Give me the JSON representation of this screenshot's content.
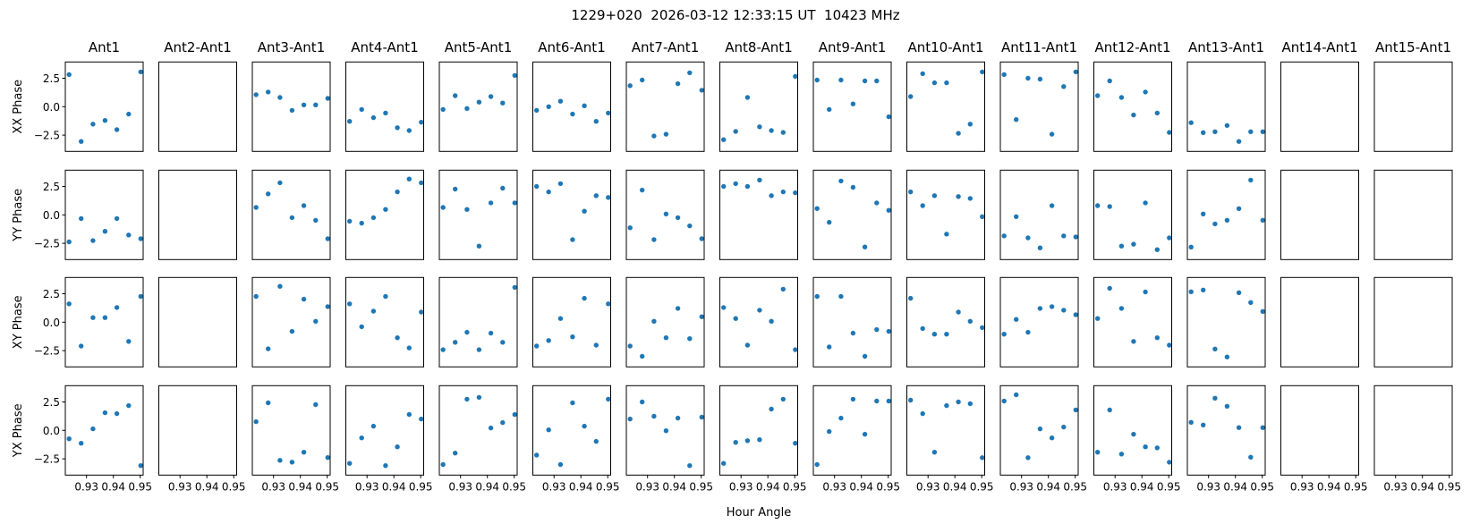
{
  "chart_data": {
    "type": "scatter",
    "title": "1229+020  2026-03-12 12:33:15 UT  10423 MHz",
    "xlabel": "Hour Angle",
    "xlim": [
      0.9221,
      0.9511
    ],
    "ylim": [
      -3.93,
      3.93
    ],
    "x_ticks": [
      "0.93",
      "0.94",
      "0.95"
    ],
    "x_tick_values": [
      0.93,
      0.94,
      0.95
    ],
    "y_ticks": [
      "2.5",
      "0.0",
      "−2.5"
    ],
    "y_tick_values": [
      2.5,
      0.0,
      -2.5
    ],
    "marker_color": "#1f77b4",
    "grid": false,
    "hour_angle": [
      0.9235,
      0.928,
      0.9324,
      0.9369,
      0.9413,
      0.9457,
      0.9502
    ],
    "columns": [
      "Ant1",
      "Ant2-Ant1",
      "Ant3-Ant1",
      "Ant4-Ant1",
      "Ant5-Ant1",
      "Ant6-Ant1",
      "Ant7-Ant1",
      "Ant8-Ant1",
      "Ant9-Ant1",
      "Ant10-Ant1",
      "Ant11-Ant1",
      "Ant12-Ant1",
      "Ant13-Ant1",
      "Ant14-Ant1",
      "Ant15-Ant1"
    ],
    "rows": [
      {
        "ylabel": "XX Phase",
        "panels": [
          [
            2.82,
            -3.06,
            -1.53,
            -1.21,
            -2.02,
            -0.65,
            3.06
          ],
          [],
          [
            1.05,
            1.29,
            0.81,
            -0.32,
            0.16,
            0.16,
            0.73
          ],
          [
            -1.29,
            -0.24,
            -0.97,
            -0.56,
            -1.85,
            -2.1,
            -1.37
          ],
          [
            -0.24,
            0.97,
            -0.16,
            0.4,
            0.89,
            0.32,
            2.74
          ],
          [
            -0.32,
            0.0,
            0.48,
            -0.65,
            0.08,
            -1.29,
            -0.56
          ],
          [
            1.85,
            2.34,
            -2.58,
            -2.42,
            2.02,
            2.98,
            1.45
          ],
          [
            -2.9,
            -2.18,
            0.81,
            -1.77,
            -2.1,
            -2.26,
            2.66
          ],
          [
            2.34,
            -0.24,
            2.34,
            0.24,
            2.26,
            2.26,
            -0.89
          ],
          [
            0.89,
            2.9,
            2.1,
            2.1,
            -2.34,
            -1.53,
            3.06
          ],
          [
            2.82,
            -1.13,
            2.5,
            2.42,
            -2.42,
            1.77,
            3.06
          ],
          [
            0.97,
            2.26,
            0.81,
            -0.73,
            1.29,
            -0.56,
            -2.26
          ],
          [
            -1.41,
            -2.28,
            -2.2,
            -1.65,
            -3.06,
            -2.2,
            -2.2
          ],
          [],
          []
        ]
      },
      {
        "ylabel": "YY Phase",
        "panels": [
          [
            -2.37,
            -0.32,
            -2.26,
            -1.45,
            -0.32,
            -1.77,
            -2.1
          ],
          [],
          [
            0.65,
            1.85,
            2.82,
            -0.24,
            0.81,
            -0.48,
            -2.1
          ],
          [
            -0.56,
            -0.73,
            -0.24,
            0.48,
            2.02,
            3.15,
            2.82
          ],
          [
            0.65,
            2.26,
            0.48,
            -2.74,
            1.05,
            2.34,
            1.05
          ],
          [
            2.5,
            2.02,
            2.74,
            -2.18,
            0.32,
            1.69,
            1.53
          ],
          [
            -1.13,
            2.18,
            -2.18,
            0.08,
            -0.24,
            -0.97,
            -2.1
          ],
          [
            2.5,
            2.74,
            2.5,
            3.06,
            1.69,
            2.02,
            1.94
          ],
          [
            0.56,
            -0.65,
            2.98,
            2.42,
            -2.82,
            1.05,
            0.4
          ],
          [
            2.02,
            0.81,
            1.69,
            -1.69,
            1.61,
            1.45,
            -0.16
          ],
          [
            -1.85,
            -0.16,
            -2.02,
            -2.9,
            0.81,
            -1.85,
            -1.94
          ],
          [
            0.81,
            0.73,
            -2.74,
            -2.58,
            1.05,
            -3.06,
            -2.02
          ],
          [
            -2.83,
            0.08,
            -0.79,
            -0.47,
            0.55,
            3.06,
            -0.47
          ],
          [],
          []
        ]
      },
      {
        "ylabel": "XY Phase",
        "panels": [
          [
            1.61,
            -2.1,
            0.4,
            0.4,
            1.29,
            -1.69,
            2.26
          ],
          [],
          [
            2.26,
            -2.34,
            3.15,
            -0.81,
            2.02,
            0.08,
            1.37
          ],
          [
            1.61,
            -0.4,
            0.97,
            2.26,
            -1.37,
            -2.26,
            0.89
          ],
          [
            -2.42,
            -1.77,
            -0.89,
            -2.42,
            -0.97,
            -1.77,
            3.06
          ],
          [
            -2.1,
            -1.61,
            0.32,
            -1.29,
            2.1,
            -2.02,
            1.61
          ],
          [
            -2.1,
            -3.0,
            0.08,
            -1.37,
            1.21,
            -1.45,
            0.48
          ],
          [
            1.29,
            0.32,
            -2.02,
            1.05,
            0.08,
            2.9,
            -2.42
          ],
          [
            2.26,
            -2.18,
            2.26,
            -0.97,
            -3.0,
            -0.65,
            -0.81
          ],
          [
            2.1,
            -0.56,
            -1.05,
            -1.05,
            0.89,
            0.08,
            -0.48
          ],
          [
            -1.05,
            0.24,
            -0.89,
            1.21,
            1.37,
            1.05,
            0.65
          ],
          [
            0.32,
            2.98,
            1.21,
            -1.69,
            2.66,
            -1.37,
            -2.02
          ],
          [
            2.67,
            2.83,
            -2.36,
            -3.06,
            2.59,
            1.73,
            0.94
          ],
          [],
          []
        ]
      },
      {
        "ylabel": "YX Phase",
        "panels": [
          [
            -0.74,
            -1.13,
            0.13,
            1.55,
            1.47,
            2.18,
            -3.1
          ],
          [],
          [
            0.76,
            2.42,
            -2.63,
            -2.79,
            -1.92,
            2.26,
            -2.39
          ],
          [
            -2.9,
            -0.66,
            0.37,
            -3.1,
            -1.45,
            1.4,
            1.0
          ],
          [
            -3.0,
            -2.0,
            2.74,
            2.9,
            0.21,
            0.68,
            1.39
          ],
          [
            -2.18,
            0.05,
            -3.0,
            2.42,
            0.37,
            -0.97,
            2.74
          ],
          [
            1.0,
            2.5,
            1.24,
            -0.03,
            1.08,
            -3.1,
            1.16
          ],
          [
            -2.9,
            -1.05,
            -0.9,
            -0.82,
            1.87,
            2.74,
            -1.13
          ],
          [
            -3.0,
            -0.1,
            1.08,
            2.74,
            -0.34,
            2.58,
            2.58
          ],
          [
            2.66,
            1.47,
            -1.92,
            2.18,
            2.5,
            2.34,
            -2.4
          ],
          [
            2.58,
            3.13,
            -2.4,
            0.13,
            -0.66,
            0.29,
            1.79
          ],
          [
            -1.92,
            1.79,
            -2.08,
            -0.34,
            -1.45,
            -1.53,
            -2.8
          ],
          [
            0.71,
            0.47,
            2.83,
            2.12,
            0.24,
            -2.36,
            0.24
          ],
          [],
          []
        ]
      }
    ]
  }
}
